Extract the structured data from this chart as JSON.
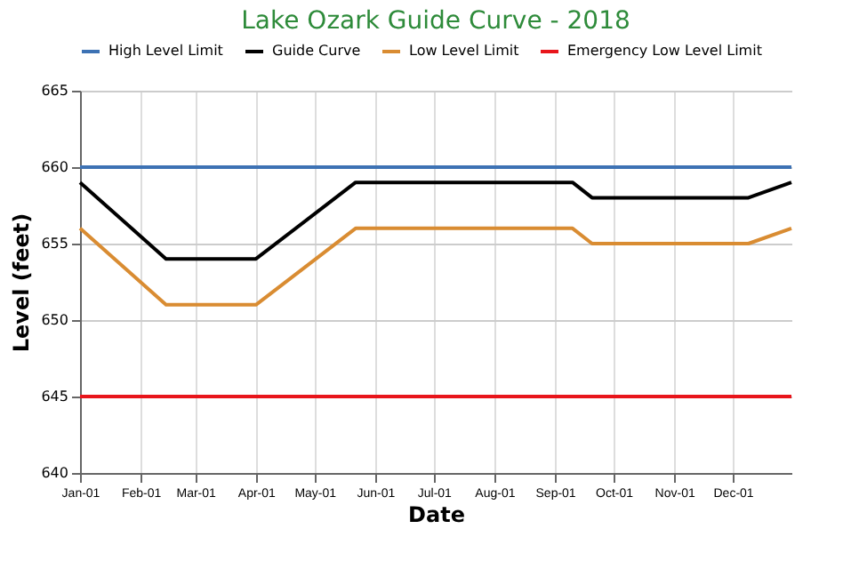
{
  "chart_data": {
    "type": "line",
    "title": "Lake Ozark Guide Curve - 2018",
    "xlabel": "Date",
    "ylabel": "Level (feet)",
    "xlim": [
      "2018-01-01",
      "2018-12-31"
    ],
    "xticks": [
      {
        "value": "2018-01-01",
        "label": "Jan-01"
      },
      {
        "value": "2018-02-01",
        "label": "Feb-01"
      },
      {
        "value": "2018-03-01",
        "label": "Mar-01"
      },
      {
        "value": "2018-04-01",
        "label": "Apr-01"
      },
      {
        "value": "2018-05-01",
        "label": "May-01"
      },
      {
        "value": "2018-06-01",
        "label": "Jun-01"
      },
      {
        "value": "2018-07-01",
        "label": "Jul-01"
      },
      {
        "value": "2018-08-01",
        "label": "Aug-01"
      },
      {
        "value": "2018-09-01",
        "label": "Sep-01"
      },
      {
        "value": "2018-10-01",
        "label": "Oct-01"
      },
      {
        "value": "2018-11-01",
        "label": "Nov-01"
      },
      {
        "value": "2018-12-01",
        "label": "Dec-01"
      }
    ],
    "ylim": [
      640,
      665
    ],
    "yticks": [
      640,
      645,
      650,
      655,
      660,
      665
    ],
    "grid": true,
    "legend": "top",
    "marker": "none",
    "line_style": "solid",
    "series": [
      {
        "name": "High Level Limit",
        "color": "#3d72b4",
        "x": [
          "2018-01-01",
          "2018-12-31"
        ],
        "values": [
          660,
          660
        ]
      },
      {
        "name": "Guide Curve",
        "color": "#000000",
        "x": [
          "2018-01-01",
          "2018-02-14",
          "2018-04-01",
          "2018-05-22",
          "2018-09-10",
          "2018-09-20",
          "2018-12-09",
          "2018-12-31"
        ],
        "values": [
          659,
          654,
          654,
          659,
          659,
          658,
          658,
          659
        ]
      },
      {
        "name": "Low Level Limit",
        "color": "#d98c32",
        "x": [
          "2018-01-01",
          "2018-02-14",
          "2018-04-01",
          "2018-05-22",
          "2018-09-10",
          "2018-09-20",
          "2018-12-09",
          "2018-12-31"
        ],
        "values": [
          656,
          651,
          651,
          656,
          656,
          655,
          655,
          656
        ]
      },
      {
        "name": "Emergency Low Level Limit",
        "color": "#e8151b",
        "x": [
          "2018-01-01",
          "2018-12-31"
        ],
        "values": [
          645,
          645
        ]
      }
    ]
  }
}
